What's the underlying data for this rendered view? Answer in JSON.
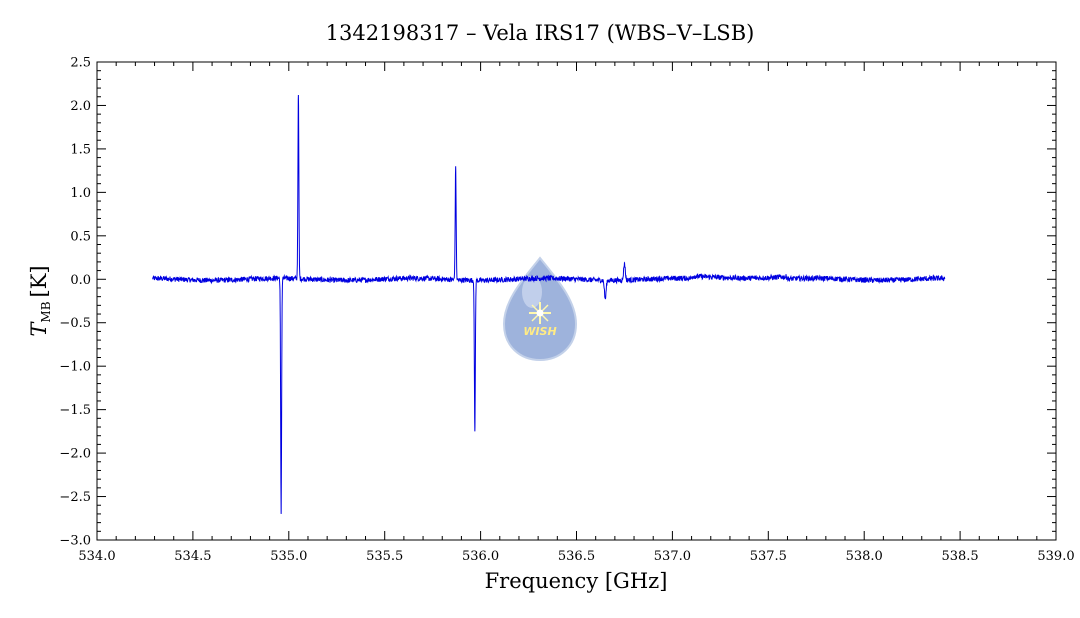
{
  "chart_data": {
    "type": "line",
    "title": "1342198317 – Vela IRS17 (WBS–V–LSB)",
    "xlabel": "Frequency [GHz]",
    "ylabel_main": "T",
    "ylabel_sub": "MB",
    "ylabel_unit": "[K]",
    "xlim": [
      534.0,
      539.0
    ],
    "ylim": [
      -3.0,
      2.5
    ],
    "x_ticks": [
      "534.0",
      "534.5",
      "535.0",
      "535.5",
      "536.0",
      "536.5",
      "537.0",
      "537.5",
      "538.0",
      "538.5",
      "539.0"
    ],
    "y_ticks": [
      "2.5",
      "2.0",
      "1.5",
      "1.0",
      "0.5",
      "0.0",
      "-0.5",
      "-1.0",
      "-1.5",
      "-2.0",
      "-2.5",
      "-3.0"
    ],
    "grid": false,
    "line_color": "#0000e0",
    "series": [
      {
        "x_range": [
          534.29,
          538.42
        ],
        "baseline": 0.0,
        "features": [
          {
            "x": 534.96,
            "y": -2.7
          },
          {
            "x": 535.05,
            "y": 2.12
          },
          {
            "x": 535.87,
            "y": 1.3
          },
          {
            "x": 535.97,
            "y": -1.75
          },
          {
            "x": 536.65,
            "y": -0.22
          },
          {
            "x": 536.75,
            "y": 0.19
          }
        ]
      }
    ],
    "logo": {
      "text": "WISH",
      "color": "#7a93c8"
    }
  }
}
